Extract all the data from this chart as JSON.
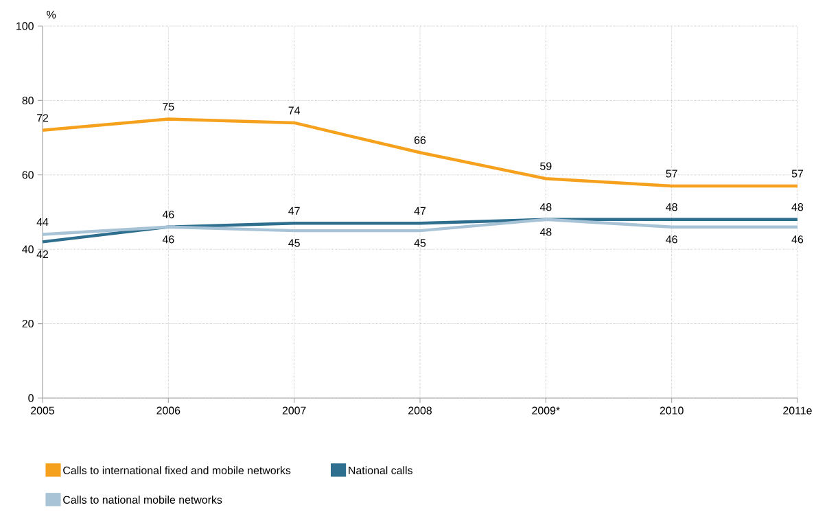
{
  "chart_data": {
    "type": "line",
    "ylabel": "%",
    "categories": [
      "2005",
      "2006",
      "2007",
      "2008",
      "2009*",
      "2010",
      "2011e"
    ],
    "series": [
      {
        "name": "Calls to international fixed and mobile networks",
        "color": "#f5a11d",
        "values": [
          72,
          75,
          74,
          66,
          59,
          57,
          57
        ]
      },
      {
        "name": "National calls",
        "color": "#2e6e8e",
        "values": [
          42,
          46,
          47,
          47,
          48,
          48,
          48
        ]
      },
      {
        "name": "Calls to national mobile networks",
        "color": "#a9c3d6",
        "values": [
          44,
          46,
          45,
          45,
          48,
          46,
          46
        ]
      }
    ],
    "ylim": [
      0,
      100
    ],
    "yticks": [
      0,
      20,
      40,
      60,
      80,
      100
    ],
    "grid": true,
    "legend": "bottom",
    "data_labels": true
  }
}
